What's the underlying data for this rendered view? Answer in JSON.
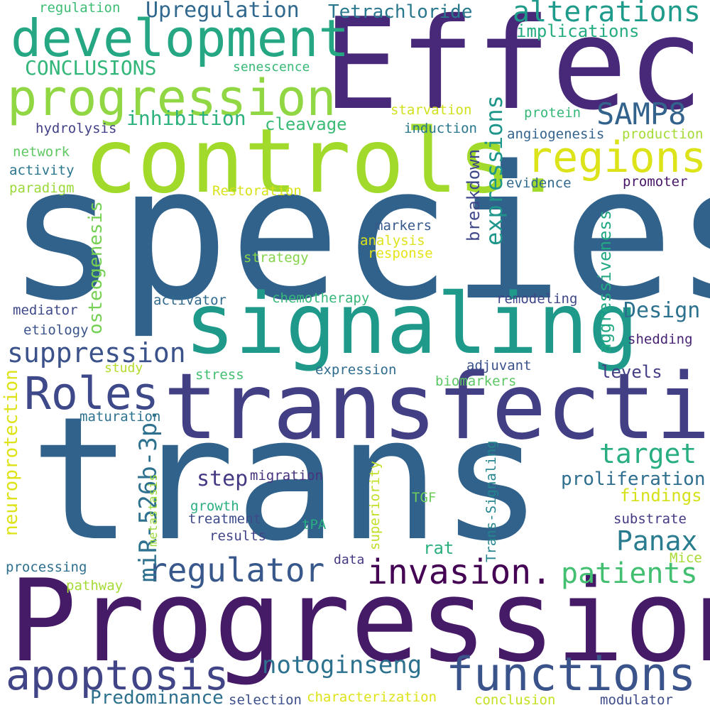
{
  "words": [
    {
      "text": "trans",
      "color": "#31628b"
    },
    {
      "text": "species",
      "color": "#31628b"
    },
    {
      "text": "Progression",
      "color": "#451a66"
    },
    {
      "text": "transfection",
      "color": "#423f84"
    },
    {
      "text": "Effect",
      "color": "#482878"
    },
    {
      "text": "controls.",
      "color": "#a2da2b"
    },
    {
      "text": "signaling",
      "color": "#1f9a8a"
    },
    {
      "text": "development",
      "color": "#26a784"
    },
    {
      "text": "progression",
      "color": "#90d743"
    },
    {
      "text": "functions",
      "color": "#3a538b"
    },
    {
      "text": "regions",
      "color": "#dce319"
    },
    {
      "text": "Roles",
      "color": "#3e4989"
    },
    {
      "text": "invasion.",
      "color": "#440154"
    },
    {
      "text": "apoptosis",
      "color": "#414487"
    },
    {
      "text": "regulator",
      "color": "#38588c"
    },
    {
      "text": "patients",
      "color": "#43bf71"
    },
    {
      "text": "SAMP8",
      "color": "#33638d"
    },
    {
      "text": "alterations",
      "color": "#1e9b8a"
    },
    {
      "text": "suppression",
      "color": "#3b528b"
    },
    {
      "text": "notoginseng",
      "color": "#2c728e"
    },
    {
      "text": "miR-526b-3p.",
      "color": "#2d718e"
    },
    {
      "text": "Upregulation",
      "color": "#30688e"
    },
    {
      "text": "target",
      "color": "#28ae80"
    },
    {
      "text": "Panax",
      "color": "#287c8e"
    },
    {
      "text": "CONCLUSIONS",
      "color": "#32b67a"
    },
    {
      "text": "Tetrachloride",
      "color": "#2a788e"
    },
    {
      "text": "expressions",
      "color": "#1f968b"
    },
    {
      "text": "Predominance",
      "color": "#2d708e"
    },
    {
      "text": "inhibition",
      "color": "#2db27d"
    },
    {
      "text": "Design",
      "color": "#2c728e"
    },
    {
      "text": "proliferation",
      "color": "#2e6e8e"
    },
    {
      "text": "implications",
      "color": "#25ac82"
    },
    {
      "text": "osteogenesis",
      "color": "#75d054"
    },
    {
      "text": "neuroprotection",
      "color": "#dde318"
    },
    {
      "text": "aggressiveness",
      "color": "#22a884"
    },
    {
      "text": "findings",
      "color": "#d5e21a"
    },
    {
      "text": "step",
      "color": "#443a83"
    },
    {
      "text": "breakdown",
      "color": "#3f4889"
    },
    {
      "text": "cleavage",
      "color": "#3bbb75"
    },
    {
      "text": "levels",
      "color": "#433e85"
    },
    {
      "text": "rat",
      "color": "#2cb17e"
    },
    {
      "text": "conclusion",
      "color": "#c5e021"
    },
    {
      "text": "characterization",
      "color": "#dde318"
    },
    {
      "text": "modulator",
      "color": "#3e4c8a"
    },
    {
      "text": "selection",
      "color": "#3c4f8a"
    },
    {
      "text": "senescence",
      "color": "#38b977"
    },
    {
      "text": "regulation",
      "color": "#3dbc74"
    },
    {
      "text": "starvation",
      "color": "#d0e11c"
    },
    {
      "text": "protein",
      "color": "#35b779"
    },
    {
      "text": "hydrolysis",
      "color": "#424086"
    },
    {
      "text": "induction",
      "color": "#2a788e"
    },
    {
      "text": "angiogenesis",
      "color": "#33638d"
    },
    {
      "text": "production",
      "color": "#a5db36"
    },
    {
      "text": "network",
      "color": "#5ec962"
    },
    {
      "text": "activity",
      "color": "#2a768e"
    },
    {
      "text": "paradigm",
      "color": "#9bd93c"
    },
    {
      "text": "Restoration",
      "color": "#d8e219"
    },
    {
      "text": "evidence",
      "color": "#30698e"
    },
    {
      "text": "promoter",
      "color": "#481668"
    },
    {
      "text": "markers",
      "color": "#38598c"
    },
    {
      "text": "analysis",
      "color": "#dde318"
    },
    {
      "text": "response",
      "color": "#e5e419"
    },
    {
      "text": "strategy",
      "color": "#84d44b"
    },
    {
      "text": "activator",
      "color": "#306a8e"
    },
    {
      "text": "chemotherapy",
      "color": "#35b779"
    },
    {
      "text": "remodeling",
      "color": "#3f4788"
    },
    {
      "text": "mediator",
      "color": "#3e4989"
    },
    {
      "text": "etiology",
      "color": "#3a548c"
    },
    {
      "text": "shedding",
      "color": "#482374"
    },
    {
      "text": "study",
      "color": "#b2dd2d"
    },
    {
      "text": "stress",
      "color": "#42be71"
    },
    {
      "text": "expression",
      "color": "#2f6c8e"
    },
    {
      "text": "adjuvant",
      "color": "#3b518b"
    },
    {
      "text": "biomarkers",
      "color": "#5cc863"
    },
    {
      "text": "maturation",
      "color": "#2c728e"
    },
    {
      "text": "metastasis",
      "color": "#9bd93c"
    },
    {
      "text": "migration",
      "color": "#46327e"
    },
    {
      "text": "superiority",
      "color": "#c0df25"
    },
    {
      "text": "Trans-Signaling",
      "color": "#25858e"
    },
    {
      "text": "TGF",
      "color": "#6ccd5a"
    },
    {
      "text": "growth",
      "color": "#29af7f"
    },
    {
      "text": "treatment",
      "color": "#3e4a89"
    },
    {
      "text": "results",
      "color": "#414487"
    },
    {
      "text": "tPA",
      "color": "#27ad81"
    },
    {
      "text": "substrate",
      "color": "#443983"
    },
    {
      "text": "data",
      "color": "#453781"
    },
    {
      "text": "Mice",
      "color": "#a8db34"
    },
    {
      "text": "processing",
      "color": "#2e6f8e"
    },
    {
      "text": "pathway",
      "color": "#a5db36"
    }
  ]
}
